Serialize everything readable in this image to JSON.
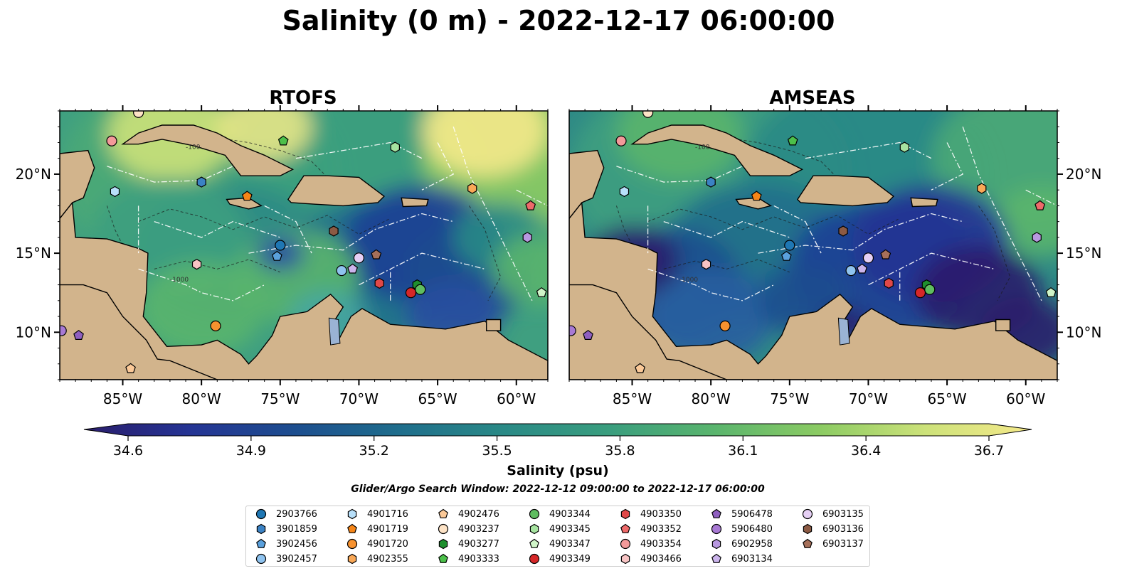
{
  "title": "Salinity (0 m) - 2022-12-17 06:00:00",
  "panels": [
    {
      "title": "RTOFS"
    },
    {
      "title": "AMSEAS"
    }
  ],
  "axes": {
    "lon_ticks": [
      "85°W",
      "80°W",
      "75°W",
      "70°W",
      "65°W",
      "60°W"
    ],
    "lat_ticks": [
      "10°N",
      "15°N",
      "20°N"
    ],
    "lon_range": [
      -89,
      -58
    ],
    "lat_range": [
      7,
      24
    ]
  },
  "contour_labels": [
    "-100",
    "-1000"
  ],
  "colorbar": {
    "label": "Salinity (psu)",
    "ticks": [
      "34.6",
      "34.9",
      "35.2",
      "35.5",
      "35.8",
      "36.1",
      "36.4",
      "36.7"
    ],
    "vmin": 34.6,
    "vmax": 36.7,
    "cmap_stops": [
      "#2a1d6b",
      "#253494",
      "#1d4e8f",
      "#1f6e8c",
      "#2a8a86",
      "#3a9e7e",
      "#5ab56d",
      "#8ccb63",
      "#cde27a",
      "#f5e98a"
    ]
  },
  "search_window": "Glider/Argo Search Window: 2022-12-12 09:00:00 to 2022-12-17 06:00:00",
  "colors": {
    "land": "#d2b48c",
    "pacific_low": "#2a1d6b",
    "pacific_masked": "#9bb8e0",
    "river": "#9ab3d4"
  },
  "floats": [
    {
      "id": "2903766",
      "marker": "circle",
      "color": "#1f77b4",
      "lon": -75.0,
      "lat": 15.5
    },
    {
      "id": "3901859",
      "marker": "hexagon",
      "color": "#3b82c4",
      "lon": -80.0,
      "lat": 19.5
    },
    {
      "id": "3902456",
      "marker": "pentagon",
      "color": "#5aa0dc",
      "lon": -75.2,
      "lat": 14.8
    },
    {
      "id": "3902457",
      "marker": "circle",
      "color": "#8fc3ef",
      "lon": -71.1,
      "lat": 13.9
    },
    {
      "id": "4901716",
      "marker": "hexagon",
      "color": "#b8e0fa",
      "lon": -85.5,
      "lat": 18.9
    },
    {
      "id": "4901719",
      "marker": "pentagon",
      "color": "#f58518",
      "lon": -77.1,
      "lat": 18.6
    },
    {
      "id": "4901720",
      "marker": "circle",
      "color": "#f7922f",
      "lon": -79.1,
      "lat": 10.4
    },
    {
      "id": "4902355",
      "marker": "hexagon",
      "color": "#f9a857",
      "lon": -62.8,
      "lat": 19.1
    },
    {
      "id": "4902476",
      "marker": "pentagon",
      "color": "#fbc998",
      "lon": -84.5,
      "lat": 7.7
    },
    {
      "id": "4903237",
      "marker": "circle",
      "color": "#fde3c6",
      "lon": -84.0,
      "lat": 23.9
    },
    {
      "id": "4903277",
      "marker": "hexagon",
      "color": "#1e8f2e",
      "lon": -66.3,
      "lat": 13.0
    },
    {
      "id": "4903333",
      "marker": "pentagon",
      "color": "#4cc04a",
      "lon": -74.8,
      "lat": 22.1
    },
    {
      "id": "4903344",
      "marker": "circle",
      "color": "#5fbd60",
      "lon": -66.1,
      "lat": 12.7
    },
    {
      "id": "4903345",
      "marker": "hexagon",
      "color": "#a6e3a0",
      "lon": -67.7,
      "lat": 21.7
    },
    {
      "id": "4903347",
      "marker": "pentagon",
      "color": "#d0f5c8",
      "lon": -58.4,
      "lat": 12.5
    },
    {
      "id": "4903349",
      "marker": "circle",
      "color": "#d62728",
      "lon": -66.7,
      "lat": 12.5
    },
    {
      "id": "4903350",
      "marker": "hexagon",
      "color": "#e04848",
      "lon": -68.7,
      "lat": 13.1
    },
    {
      "id": "4903352",
      "marker": "pentagon",
      "color": "#ee6a6a",
      "lon": -59.1,
      "lat": 18.0
    },
    {
      "id": "4903354",
      "marker": "circle",
      "color": "#f39a9a",
      "lon": -85.7,
      "lat": 22.1
    },
    {
      "id": "4903466",
      "marker": "hexagon",
      "color": "#f8c4c4",
      "lon": -80.3,
      "lat": 14.3
    },
    {
      "id": "5906478",
      "marker": "pentagon",
      "color": "#8f5fc0",
      "lon": -87.8,
      "lat": 9.8
    },
    {
      "id": "5906480",
      "marker": "circle",
      "color": "#a879d4",
      "lon": -88.9,
      "lat": 10.1
    },
    {
      "id": "6902958",
      "marker": "hexagon",
      "color": "#b898e0",
      "lon": -59.3,
      "lat": 16.0
    },
    {
      "id": "6903134",
      "marker": "pentagon",
      "color": "#cbb4ec",
      "lon": -70.4,
      "lat": 14.0
    },
    {
      "id": "6903135",
      "marker": "circle",
      "color": "#e6d0f5",
      "lon": -70.0,
      "lat": 14.7
    },
    {
      "id": "6903136",
      "marker": "hexagon",
      "color": "#8c5a44",
      "lon": -71.6,
      "lat": 16.4
    },
    {
      "id": "6903137",
      "marker": "pentagon",
      "color": "#a6705a",
      "lon": -68.9,
      "lat": 14.9
    }
  ]
}
